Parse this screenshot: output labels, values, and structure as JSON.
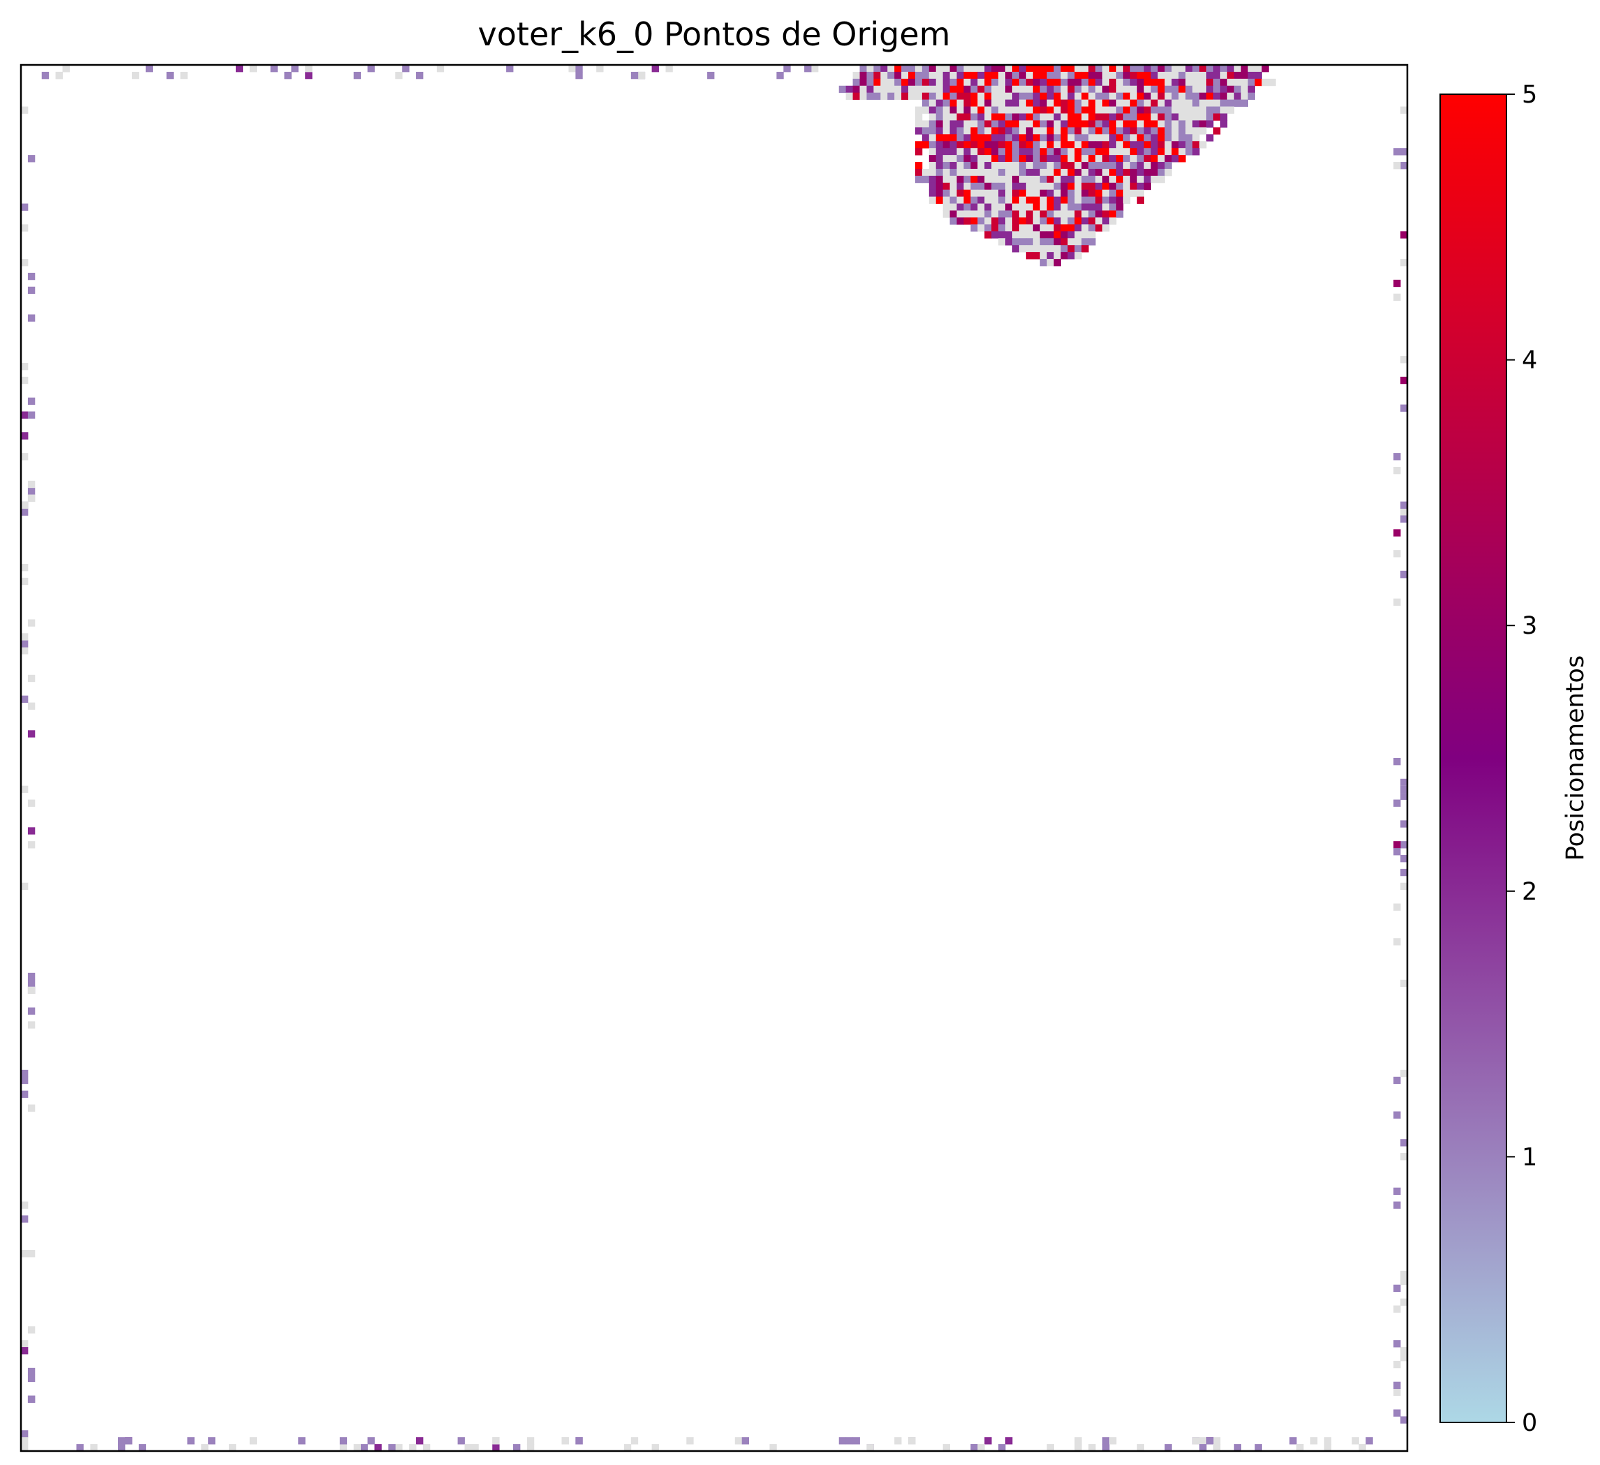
{
  "chart_data": {
    "type": "heatmap",
    "title": "voter_k6_0 Pontos de Origem",
    "grid_size": [
      200,
      200
    ],
    "axes_ticks": "hidden",
    "colorbar": {
      "label": "Posicionamentos",
      "min": 0,
      "max": 5,
      "ticks": [
        0,
        1,
        2,
        3,
        4,
        5
      ],
      "tick_labels": [
        "0",
        "1",
        "2",
        "3",
        "4",
        "5"
      ],
      "colors": [
        "#add8e6",
        "#800080",
        "#ff0000"
      ],
      "stops": [
        0,
        0.5,
        1.0
      ]
    },
    "background_color": "#ffffff",
    "visited_zero_color": "#e0e0e0",
    "regions": [
      {
        "description": "dense triangular cluster at top",
        "col_start": 118,
        "col_end": 180,
        "row_start": 0,
        "row_end": 28,
        "apex_col": 149,
        "value_range": [
          0,
          5
        ],
        "hotspot": {
          "col": 148,
          "row": 20
        }
      },
      {
        "description": "sparse cells along left edge",
        "col_range": [
          0,
          1
        ],
        "row_range": [
          5,
          198
        ],
        "value_range": [
          0,
          2
        ]
      },
      {
        "description": "sparse cells along right edge",
        "col_range": [
          198,
          199
        ],
        "row_range": [
          5,
          198
        ],
        "value_range": [
          0,
          3
        ]
      },
      {
        "description": "sparse cells along top edge",
        "row_range": [
          0,
          1
        ],
        "col_range": [
          2,
          118
        ],
        "value_range": [
          0,
          2
        ]
      },
      {
        "description": "sparse cells along bottom edge",
        "row_range": [
          198,
          199
        ],
        "col_range": [
          0,
          199
        ],
        "value_range": [
          0,
          2
        ]
      }
    ]
  }
}
